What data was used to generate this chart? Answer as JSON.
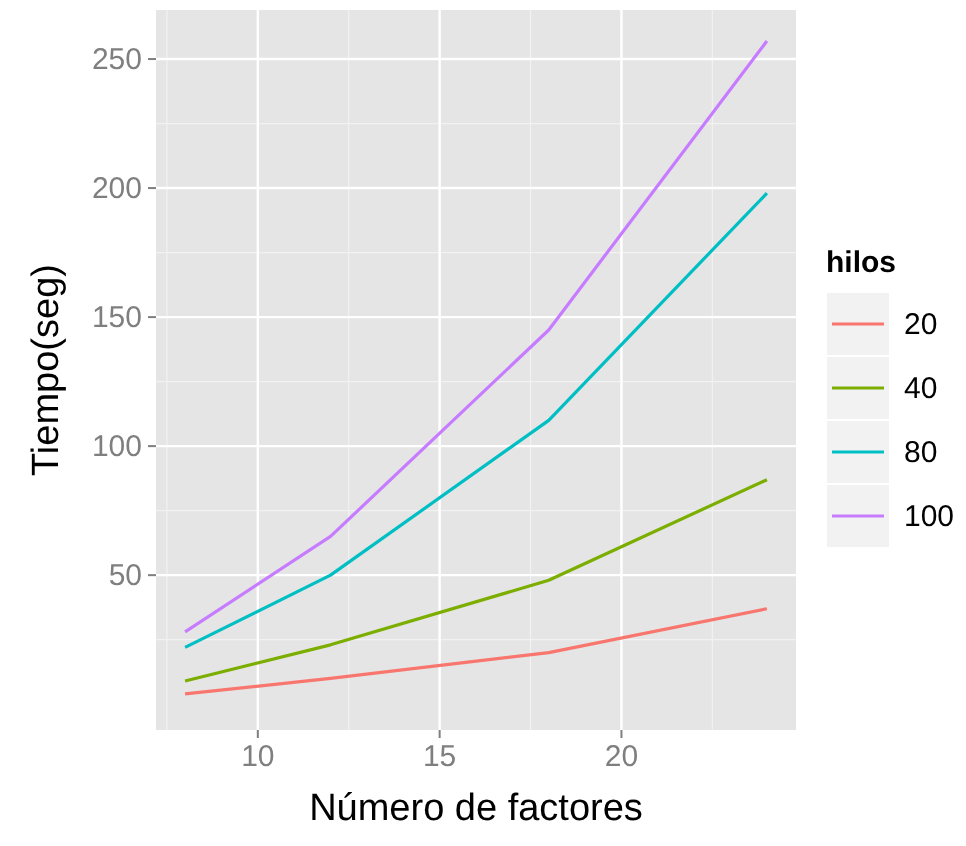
{
  "chart_data": {
    "type": "line",
    "xlabel": "Número de factores",
    "ylabel": "Tiempo(seg)",
    "legend_title": "hilos",
    "legend": "right",
    "grid": true,
    "x": [
      8,
      12,
      18,
      24
    ],
    "xlim": [
      7.2,
      24.8
    ],
    "xticks": [
      10,
      15,
      20
    ],
    "ylim": [
      -10,
      269
    ],
    "yticks": [
      50,
      100,
      150,
      200,
      250
    ],
    "series": [
      {
        "name": "20",
        "color": "#f8766d",
        "values": [
          4,
          10,
          20,
          37
        ]
      },
      {
        "name": "40",
        "color": "#7cae00",
        "values": [
          9,
          23,
          48,
          87
        ]
      },
      {
        "name": "80",
        "color": "#00bfc4",
        "values": [
          22,
          50,
          110,
          198
        ]
      },
      {
        "name": "100",
        "color": "#c77cff",
        "values": [
          28,
          65,
          145,
          257
        ]
      }
    ]
  }
}
